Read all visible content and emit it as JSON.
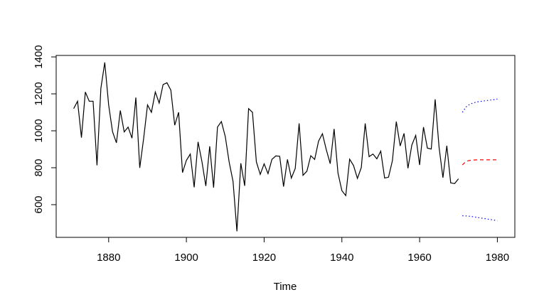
{
  "chart_data": {
    "type": "line",
    "xlabel": "Time",
    "xlim": [
      1866.5,
      1984.5
    ],
    "ylim": [
      423,
      1408
    ],
    "xticks": [
      1880,
      1900,
      1920,
      1940,
      1960,
      1980
    ],
    "yticks": [
      600,
      800,
      1000,
      1200,
      1400
    ],
    "series": [
      {
        "color": "#000000",
        "style": "solid",
        "x": [
          1871,
          1872,
          1873,
          1874,
          1875,
          1876,
          1877,
          1878,
          1879,
          1880,
          1881,
          1882,
          1883,
          1884,
          1885,
          1886,
          1887,
          1888,
          1889,
          1890,
          1891,
          1892,
          1893,
          1894,
          1895,
          1896,
          1897,
          1898,
          1899,
          1900,
          1901,
          1902,
          1903,
          1904,
          1905,
          1906,
          1907,
          1908,
          1909,
          1910,
          1911,
          1912,
          1913,
          1914,
          1915,
          1916,
          1917,
          1918,
          1919,
          1920,
          1921,
          1922,
          1923,
          1924,
          1925,
          1926,
          1927,
          1928,
          1929,
          1930,
          1931,
          1932,
          1933,
          1934,
          1935,
          1936,
          1937,
          1938,
          1939,
          1940,
          1941,
          1942,
          1943,
          1944,
          1945,
          1946,
          1947,
          1948,
          1949,
          1950,
          1951,
          1952,
          1953,
          1954,
          1955,
          1956,
          1957,
          1958,
          1959,
          1960,
          1961,
          1962,
          1963,
          1964,
          1965,
          1966,
          1967,
          1968,
          1969,
          1970
        ],
        "values": [
          1120,
          1160,
          963,
          1210,
          1160,
          1160,
          813,
          1230,
          1370,
          1140,
          995,
          935,
          1110,
          994,
          1020,
          960,
          1180,
          799,
          958,
          1140,
          1100,
          1210,
          1150,
          1250,
          1260,
          1220,
          1030,
          1100,
          774,
          840,
          874,
          694,
          940,
          833,
          701,
          916,
          692,
          1020,
          1050,
          969,
          831,
          726,
          456,
          824,
          702,
          1120,
          1100,
          832,
          764,
          821,
          768,
          845,
          864,
          862,
          698,
          845,
          744,
          796,
          1040,
          759,
          781,
          865,
          845,
          944,
          984,
          897,
          822,
          1010,
          771,
          676,
          649,
          846,
          812,
          742,
          801,
          1040,
          860,
          874,
          848,
          890,
          744,
          749,
          838,
          1050,
          918,
          986,
          797,
          923,
          975,
          815,
          1020,
          906,
          901,
          1170,
          912,
          746,
          919,
          718,
          714,
          740
        ]
      },
      {
        "color": "#ff0000",
        "style": "dashed",
        "x": [
          1971,
          1972,
          1973,
          1974,
          1975,
          1976,
          1977,
          1978,
          1979,
          1980
        ],
        "values": [
          815,
          835,
          840,
          842,
          843,
          843,
          843,
          843,
          843,
          843
        ]
      },
      {
        "color": "#0000ff",
        "style": "dotted",
        "x": [
          1971,
          1972,
          1973,
          1974,
          1975,
          1976,
          1977,
          1978,
          1979,
          1980
        ],
        "values": [
          1100,
          1130,
          1145,
          1152,
          1157,
          1160,
          1163,
          1166,
          1168,
          1172
        ]
      },
      {
        "color": "#0000ff",
        "style": "dotted",
        "x": [
          1971,
          1972,
          1973,
          1974,
          1975,
          1976,
          1977,
          1978,
          1979,
          1980
        ],
        "values": [
          540,
          539,
          537,
          534,
          530,
          527,
          524,
          520,
          517,
          513
        ]
      }
    ]
  }
}
